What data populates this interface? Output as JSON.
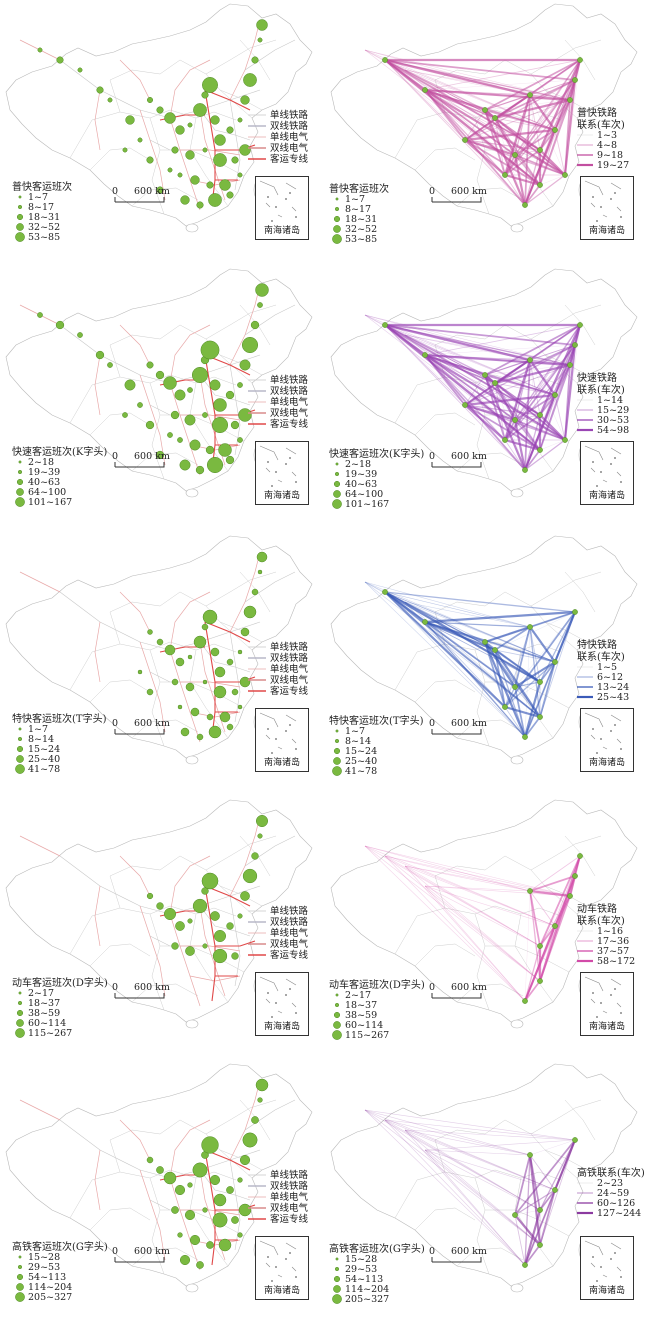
{
  "inset_label": "南海诸岛",
  "scale": {
    "zero": "0",
    "dist": "600 km"
  },
  "rail_legend": [
    "单线铁路",
    "双线铁路",
    "单线电气",
    "双线电气",
    "客运专线"
  ],
  "colors": {
    "node": "#7ab940",
    "pufast": "#c24fa0",
    "kfast": "#9a45b4",
    "tfast": "#3a5ab8",
    "dtrain": "#d24aa8",
    "gtrain": "#8b3aa0"
  },
  "panels": [
    {
      "service_title": "普快客运班次",
      "service_classes": [
        "1~7",
        "8~17",
        "18~31",
        "32~52",
        "53~85"
      ],
      "link_title_1": "普快铁路",
      "link_title_2": "联系(车次)",
      "link_classes": [
        "1~3",
        "4~8",
        "9~18",
        "19~27"
      ]
    },
    {
      "service_title": "快速客运班次(K字头)",
      "service_classes": [
        "2~18",
        "19~39",
        "40~63",
        "64~100",
        "101~167"
      ],
      "link_title_1": "快速铁路",
      "link_title_2": "联系(车次)",
      "link_classes": [
        "1~14",
        "15~29",
        "30~53",
        "54~98"
      ]
    },
    {
      "service_title": "特快客运班次(T字头)",
      "service_classes": [
        "1~7",
        "8~14",
        "15~24",
        "25~40",
        "41~78"
      ],
      "link_title_1": "特快铁路",
      "link_title_2": "联系(车次)",
      "link_classes": [
        "1~5",
        "6~12",
        "13~24",
        "25~43"
      ]
    },
    {
      "service_title": "动车客运班次(D字头)",
      "service_classes": [
        "2~17",
        "18~37",
        "38~59",
        "60~114",
        "115~267"
      ],
      "link_title_1": "动车铁路",
      "link_title_2": "联系(车次)",
      "link_classes": [
        "1~16",
        "17~36",
        "37~57",
        "58~172"
      ]
    },
    {
      "service_title": "高铁客运班次(G字头)",
      "service_classes": [
        "15~28",
        "29~53",
        "54~113",
        "114~204",
        "205~327"
      ],
      "link_title_1": "高铁联系(车次)",
      "link_title_2": "",
      "link_classes": [
        "2~23",
        "24~59",
        "60~126",
        "127~244"
      ]
    }
  ]
}
